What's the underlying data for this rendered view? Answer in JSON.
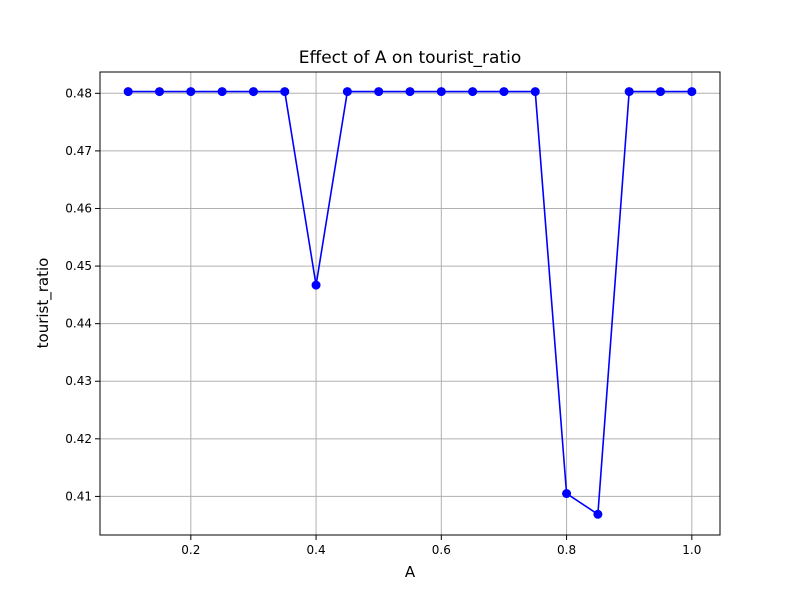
{
  "chart_data": {
    "type": "line",
    "title": "Effect of A on tourist_ratio",
    "xlabel": "A",
    "ylabel": "tourist_ratio",
    "xlim": [
      0.055,
      1.045
    ],
    "ylim": [
      0.4033,
      0.4837
    ],
    "x_ticks": [
      0.2,
      0.4,
      0.6,
      0.8,
      1.0
    ],
    "x_tick_labels": [
      "0.2",
      "0.4",
      "0.6",
      "0.8",
      "1.0"
    ],
    "y_ticks": [
      0.41,
      0.42,
      0.43,
      0.44,
      0.45,
      0.46,
      0.47,
      0.48
    ],
    "y_tick_labels": [
      "0.41",
      "0.42",
      "0.43",
      "0.44",
      "0.45",
      "0.46",
      "0.47",
      "0.48"
    ],
    "grid": true,
    "series": [
      {
        "color": "#0000ff",
        "marker": "circle",
        "x": [
          0.1,
          0.15,
          0.2,
          0.25,
          0.3,
          0.35,
          0.4,
          0.45,
          0.5,
          0.55,
          0.6,
          0.65,
          0.7,
          0.75,
          0.8,
          0.85,
          0.9,
          0.95,
          1.0
        ],
        "y": [
          0.4803,
          0.4803,
          0.4803,
          0.4803,
          0.4803,
          0.4803,
          0.4467,
          0.4803,
          0.4803,
          0.4803,
          0.4803,
          0.4803,
          0.4803,
          0.4803,
          0.4105,
          0.4069,
          0.4803,
          0.4803,
          0.4803
        ]
      }
    ]
  }
}
